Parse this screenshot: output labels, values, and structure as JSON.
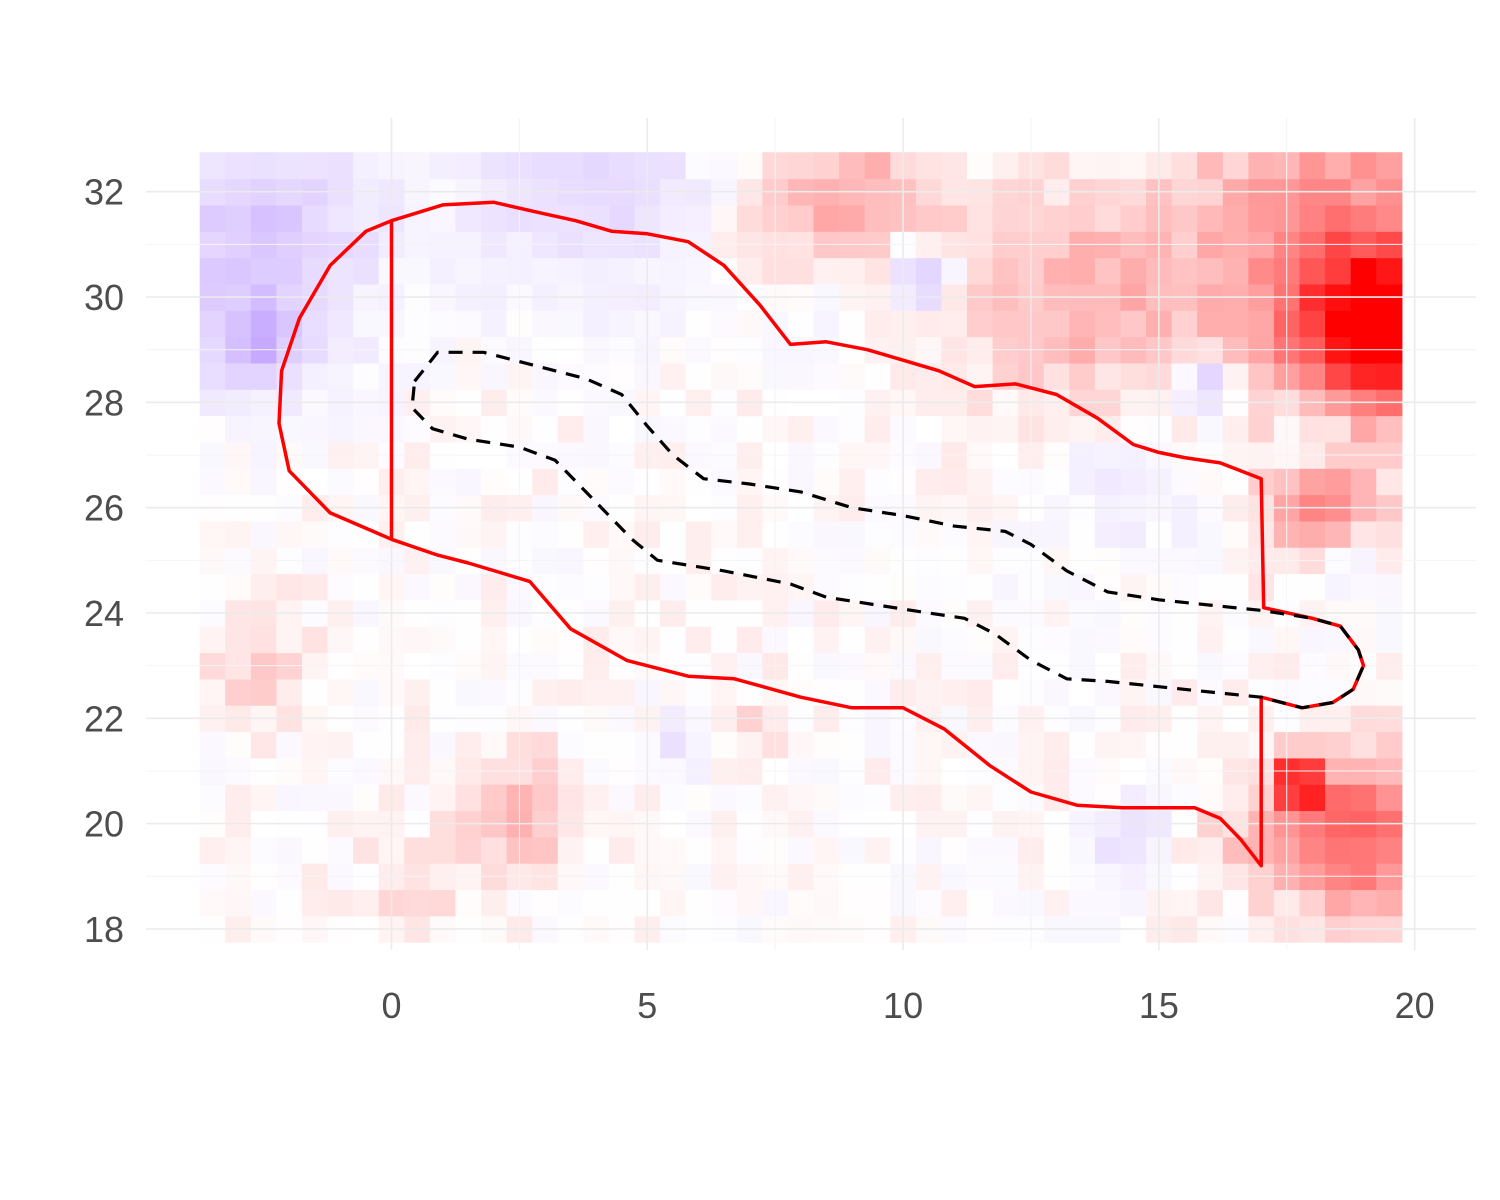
{
  "chart_data": {
    "type": "heatmap",
    "title": "",
    "xlabel": "",
    "ylabel": "",
    "xlim": [
      -4.8,
      21.2
    ],
    "ylim": [
      17.6,
      33.4
    ],
    "x_ticks": [
      0,
      5,
      10,
      15,
      20
    ],
    "y_ticks": [
      18,
      20,
      22,
      24,
      26,
      28,
      30,
      32
    ],
    "x_tick_labels": [
      "0",
      "5",
      "10",
      "15",
      "20"
    ],
    "y_tick_labels": [
      "18",
      "20",
      "22",
      "24",
      "26",
      "28",
      "30",
      "32"
    ],
    "grid": true,
    "legend": "none",
    "cell_size": 0.5,
    "x_start": -3.5,
    "y_start": 18.0,
    "ncols": 47,
    "nrows": 30,
    "value_range": [
      -1,
      1
    ],
    "colors": {
      "low": "#b38cff",
      "mid": "#ffffff",
      "high": "#ff0000",
      "outer_outline": "#ff0000",
      "inner_outline": "#000000"
    },
    "hotspots": [
      {
        "x": 19.25,
        "y": 29.4,
        "value": 0.95,
        "spread": 1.0
      },
      {
        "x": 18.5,
        "y": 31.0,
        "value": 0.45,
        "spread": 2.2
      },
      {
        "x": 17.75,
        "y": 20.75,
        "value": 1.0,
        "spread": 0.35
      },
      {
        "x": 19.0,
        "y": 19.8,
        "value": 0.6,
        "spread": 1.1
      },
      {
        "x": 18.2,
        "y": 26.0,
        "value": 0.45,
        "spread": 0.8
      },
      {
        "x": 9.0,
        "y": 31.4,
        "value": 0.35,
        "spread": 1.4
      },
      {
        "x": 13.5,
        "y": 29.8,
        "value": 0.28,
        "spread": 1.5
      },
      {
        "x": 2.5,
        "y": 20.2,
        "value": 0.3,
        "spread": 0.8
      },
      {
        "x": 7.3,
        "y": 22.0,
        "value": 0.15,
        "spread": 0.5
      },
      {
        "x": -2.6,
        "y": 23.0,
        "value": 0.18,
        "spread": 0.8
      },
      {
        "x": 0.5,
        "y": 18.6,
        "value": 0.1,
        "spread": 0.9
      },
      {
        "x": 16.5,
        "y": 19.6,
        "value": 0.15,
        "spread": 0.8
      },
      {
        "x": -2.6,
        "y": 31.0,
        "value": -0.5,
        "spread": 1.6
      },
      {
        "x": 3.8,
        "y": 32.2,
        "value": -0.35,
        "spread": 1.6
      },
      {
        "x": 10.3,
        "y": 30.4,
        "value": -0.6,
        "spread": 0.45
      },
      {
        "x": 15.9,
        "y": 28.3,
        "value": -0.6,
        "spread": 0.35
      },
      {
        "x": 8.5,
        "y": 30.1,
        "value": -0.2,
        "spread": 0.9
      },
      {
        "x": 14.2,
        "y": 26.5,
        "value": -0.15,
        "spread": 1.2
      },
      {
        "x": 18.0,
        "y": 27.2,
        "value": -0.25,
        "spread": 0.5
      },
      {
        "x": 18.5,
        "y": 25.0,
        "value": -0.25,
        "spread": 0.5
      },
      {
        "x": 14.5,
        "y": 19.6,
        "value": -0.25,
        "spread": 0.6
      },
      {
        "x": -2.6,
        "y": 29.0,
        "value": -0.45,
        "spread": 0.6
      },
      {
        "x": 5.6,
        "y": 21.5,
        "value": -0.2,
        "spread": 0.4
      }
    ],
    "outer_region": [
      [
        0.0,
        31.45
      ],
      [
        1.0,
        31.75
      ],
      [
        2.0,
        31.8
      ],
      [
        2.9,
        31.6
      ],
      [
        3.6,
        31.45
      ],
      [
        4.3,
        31.25
      ],
      [
        5.0,
        31.2
      ],
      [
        5.8,
        31.05
      ],
      [
        6.5,
        30.6
      ],
      [
        7.2,
        29.85
      ],
      [
        7.8,
        29.1
      ],
      [
        8.5,
        29.15
      ],
      [
        9.3,
        29.0
      ],
      [
        10.0,
        28.8
      ],
      [
        10.7,
        28.6
      ],
      [
        11.4,
        28.3
      ],
      [
        12.2,
        28.35
      ],
      [
        13.0,
        28.15
      ],
      [
        13.8,
        27.7
      ],
      [
        14.5,
        27.2
      ],
      [
        15.0,
        27.05
      ],
      [
        15.5,
        26.95
      ],
      [
        16.2,
        26.85
      ],
      [
        17.0,
        26.55
      ],
      [
        17.05,
        24.1
      ],
      [
        18.0,
        23.9
      ],
      [
        18.55,
        23.75
      ],
      [
        18.9,
        23.3
      ],
      [
        19.0,
        23.0
      ],
      [
        18.8,
        22.55
      ],
      [
        18.4,
        22.3
      ],
      [
        17.8,
        22.2
      ],
      [
        17.0,
        22.4
      ],
      [
        17.0,
        19.2
      ],
      [
        16.6,
        19.7
      ],
      [
        16.2,
        20.1
      ],
      [
        15.7,
        20.3
      ],
      [
        15.0,
        20.3
      ],
      [
        14.3,
        20.3
      ],
      [
        13.4,
        20.35
      ],
      [
        12.5,
        20.6
      ],
      [
        11.7,
        21.1
      ],
      [
        10.8,
        21.8
      ],
      [
        10.0,
        22.2
      ],
      [
        9.0,
        22.2
      ],
      [
        8.0,
        22.4
      ],
      [
        6.7,
        22.75
      ],
      [
        5.8,
        22.8
      ],
      [
        4.6,
        23.1
      ],
      [
        3.5,
        23.7
      ],
      [
        2.7,
        24.6
      ],
      [
        1.5,
        24.95
      ],
      [
        0.9,
        25.1
      ],
      [
        0.0,
        25.4
      ],
      [
        -1.2,
        25.9
      ],
      [
        -2.0,
        26.7
      ],
      [
        -2.2,
        27.6
      ],
      [
        -2.15,
        28.6
      ],
      [
        -1.8,
        29.6
      ],
      [
        -1.2,
        30.6
      ],
      [
        -0.5,
        31.25
      ],
      [
        0.0,
        31.45
      ],
      [
        0.0,
        25.4
      ]
    ],
    "inner_region": [
      [
        0.45,
        28.4
      ],
      [
        0.9,
        28.95
      ],
      [
        1.8,
        28.95
      ],
      [
        2.8,
        28.7
      ],
      [
        3.8,
        28.45
      ],
      [
        4.5,
        28.15
      ],
      [
        5.0,
        27.55
      ],
      [
        5.5,
        27.0
      ],
      [
        6.1,
        26.55
      ],
      [
        7.0,
        26.45
      ],
      [
        8.0,
        26.3
      ],
      [
        9.0,
        26.0
      ],
      [
        10.0,
        25.85
      ],
      [
        11.0,
        25.65
      ],
      [
        12.0,
        25.55
      ],
      [
        12.5,
        25.3
      ],
      [
        13.2,
        24.8
      ],
      [
        14.0,
        24.4
      ],
      [
        15.0,
        24.25
      ],
      [
        16.0,
        24.15
      ],
      [
        17.0,
        24.05
      ],
      [
        18.0,
        23.9
      ],
      [
        18.55,
        23.75
      ],
      [
        18.9,
        23.3
      ],
      [
        19.0,
        23.0
      ],
      [
        18.8,
        22.55
      ],
      [
        18.4,
        22.3
      ],
      [
        17.8,
        22.2
      ],
      [
        17.0,
        22.4
      ],
      [
        16.0,
        22.5
      ],
      [
        15.0,
        22.6
      ],
      [
        14.0,
        22.7
      ],
      [
        13.2,
        22.75
      ],
      [
        12.5,
        23.1
      ],
      [
        11.8,
        23.6
      ],
      [
        11.2,
        23.9
      ],
      [
        10.5,
        24.0
      ],
      [
        9.5,
        24.15
      ],
      [
        8.5,
        24.3
      ],
      [
        7.8,
        24.55
      ],
      [
        6.5,
        24.8
      ],
      [
        5.2,
        25.0
      ],
      [
        4.7,
        25.4
      ],
      [
        4.0,
        26.1
      ],
      [
        3.2,
        26.9
      ],
      [
        2.5,
        27.15
      ],
      [
        1.5,
        27.3
      ],
      [
        0.8,
        27.5
      ],
      [
        0.4,
        27.9
      ],
      [
        0.45,
        28.4
      ]
    ]
  }
}
